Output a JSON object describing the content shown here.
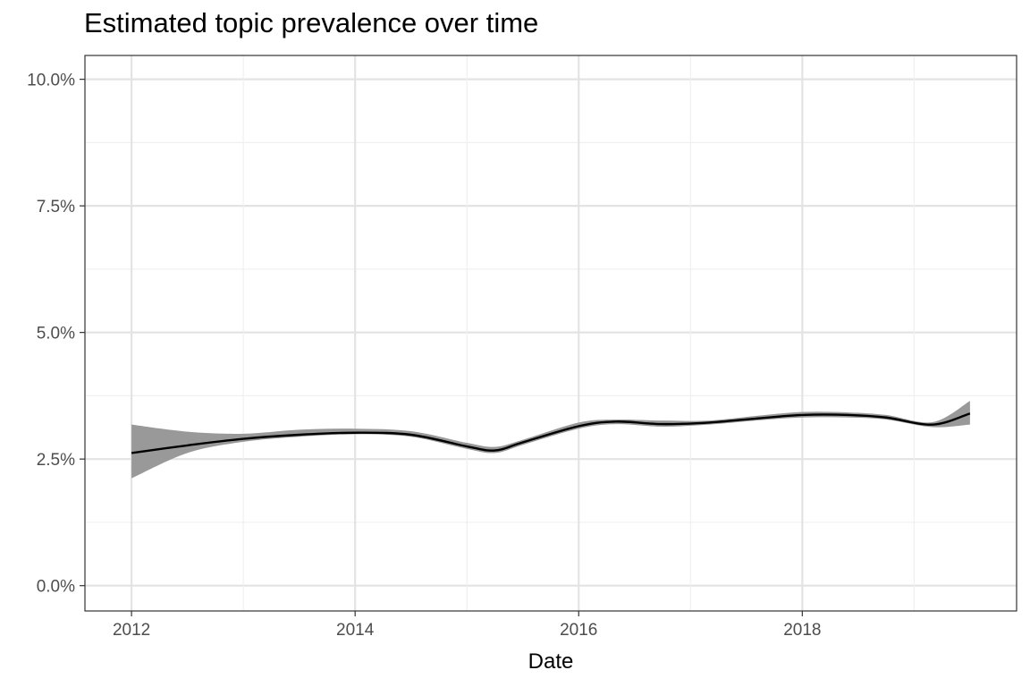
{
  "chart_data": {
    "type": "line",
    "title": "Estimated topic prevalence over time",
    "xlabel": "Date",
    "ylabel": "",
    "x_ticks": [
      "2012",
      "2014",
      "2016",
      "2018"
    ],
    "y_ticks": [
      "0.0%",
      "2.5%",
      "5.0%",
      "7.5%",
      "10.0%"
    ],
    "x_range": [
      "2011-08",
      "2019-12"
    ],
    "ylim": [
      -0.005,
      0.1047
    ],
    "y_tick_values": [
      0.0,
      0.025,
      0.05,
      0.075,
      0.1
    ],
    "grid": true,
    "confidence_band": true,
    "series": [
      {
        "x": [
          "2012-01",
          "2012-07",
          "2013-01",
          "2013-07",
          "2014-01",
          "2014-07",
          "2015-01",
          "2015-04",
          "2015-07",
          "2016-01",
          "2016-05",
          "2016-10",
          "2017-03",
          "2017-08",
          "2018-01",
          "2018-06",
          "2018-10",
          "2019-03",
          "2019-07"
        ],
        "y": [
          0.0262,
          0.0277,
          0.029,
          0.0298,
          0.0302,
          0.0298,
          0.0275,
          0.0267,
          0.0283,
          0.0315,
          0.0324,
          0.0319,
          0.0322,
          0.033,
          0.0337,
          0.0337,
          0.0332,
          0.0318,
          0.034
        ],
        "lower": [
          0.0212,
          0.0262,
          0.0284,
          0.0294,
          0.0299,
          0.0294,
          0.027,
          0.0262,
          0.0278,
          0.031,
          0.0319,
          0.0314,
          0.0318,
          0.0326,
          0.0332,
          0.0332,
          0.0328,
          0.0313,
          0.0318
        ],
        "upper": [
          0.0318,
          0.0304,
          0.03,
          0.0308,
          0.031,
          0.0305,
          0.0282,
          0.0274,
          0.0288,
          0.0322,
          0.0328,
          0.0326,
          0.0326,
          0.0335,
          0.0343,
          0.0342,
          0.0337,
          0.0323,
          0.0365
        ],
        "line_color": "#000000",
        "band_color": "#999999"
      }
    ]
  }
}
